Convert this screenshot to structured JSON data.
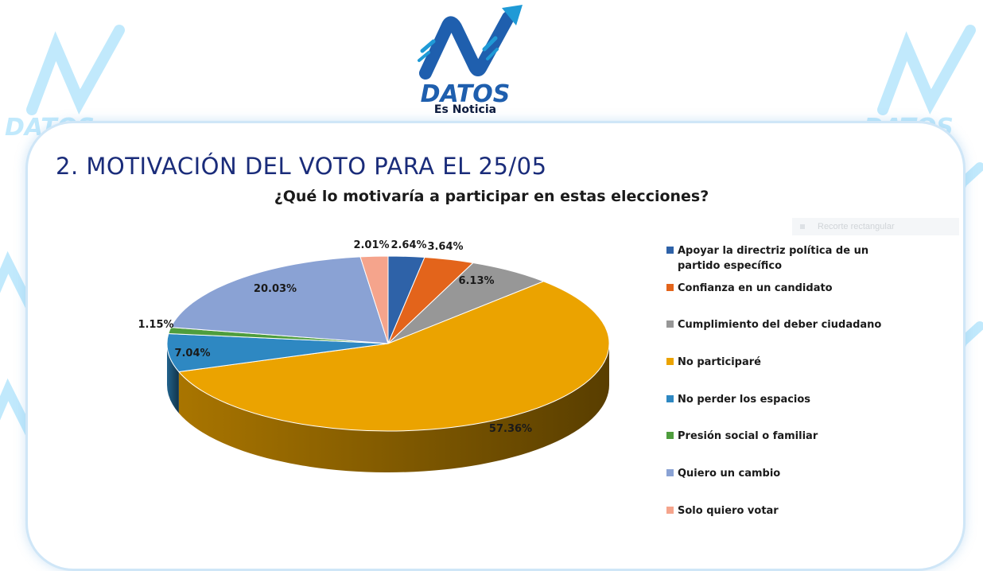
{
  "brand": {
    "name": "DATOS",
    "tagline": "Es Noticia",
    "color_primary": "#1f5fae",
    "color_secondary": "#1f9ad6"
  },
  "slide": {
    "section_title": "2. MOTIVACIÓN DEL VOTO PARA EL 25/05",
    "ghost_tooltip": "Recorte rectangular"
  },
  "chart_data": {
    "type": "pie",
    "title": "¿Qué lo motivaría a participar en estas elecciones?",
    "legend_position": "right",
    "slices": [
      {
        "label": "Apoyar la directriz política de un partido específico",
        "value": 2.64,
        "value_label": "2.64%",
        "color": "#2e62a8"
      },
      {
        "label": "Confianza en un candidato",
        "value": 3.64,
        "value_label": "3.64%",
        "color": "#e3641b"
      },
      {
        "label": "Cumplimiento del deber ciudadano",
        "value": 6.13,
        "value_label": "6.13%",
        "color": "#979797"
      },
      {
        "label": "No participaré",
        "value": 57.36,
        "value_label": "57.36%",
        "color": "#eba300"
      },
      {
        "label": "No perder los espacios",
        "value": 7.04,
        "value_label": "7.04%",
        "color": "#2e88c2"
      },
      {
        "label": "Presión social o familiar",
        "value": 1.15,
        "value_label": "1.15%",
        "color": "#4e9d3d"
      },
      {
        "label": "Quiero un cambio",
        "value": 20.03,
        "value_label": "20.03%",
        "color": "#8aa2d4"
      },
      {
        "label": "Solo quiero votar",
        "value": 2.01,
        "value_label": "2.01%",
        "color": "#f5a48c"
      }
    ]
  }
}
